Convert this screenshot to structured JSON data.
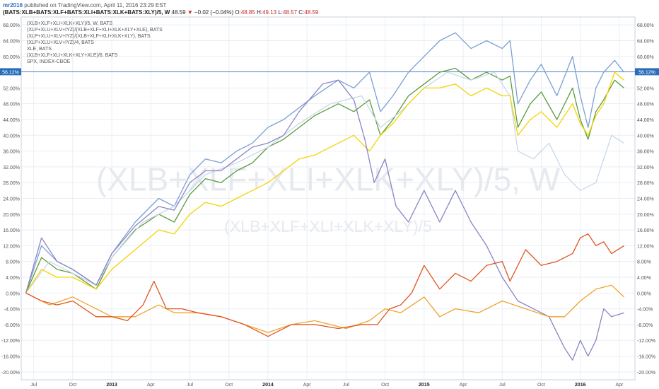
{
  "header": {
    "author": "mr2016",
    "published": "published on TradingView.com, April 11, 2016 23:29 EST",
    "symbol": "(BATS:XLB+BATS:XLF+BATS:XLI+BATS:XLK+BATS:XLY)/5, W",
    "last": "48.59",
    "change_arrow": "▼",
    "change": "−0.02 (−0.04%)",
    "o_label": "O:",
    "o": "48.85",
    "h_label": "H:",
    "h": "49.13",
    "l_label": "L:",
    "l": "48.57",
    "c_label": "C:",
    "c": "48.59"
  },
  "watermark": {
    "line1": "(XLB+XLF+XLI+XLK+XLY)/5, W",
    "line2": "(XLB+XLF+XLI+XLK+XLY)/5"
  },
  "current_marker": {
    "label": "56.12%",
    "value": 56.12
  },
  "colors": {
    "background": "#ffffff",
    "grid": "#e9eef4",
    "axis_text": "#555555",
    "marker": "#2a6ebb"
  },
  "chart_data": {
    "type": "line",
    "title": "",
    "xlabel": "",
    "ylabel": "",
    "y_unit": "%",
    "ylim": [
      -22,
      70
    ],
    "yticks": [
      -20,
      -16,
      -12,
      -8,
      -4,
      0,
      4,
      8,
      12,
      16,
      20,
      24,
      28,
      32,
      36,
      40,
      44,
      48,
      52,
      56,
      60,
      64,
      68
    ],
    "ytick_labels": [
      "-20.00%",
      "-16.00%",
      "-12.00%",
      "-8.00%",
      "-4.00%",
      "0.00%",
      "4.00%",
      "8.00%",
      "12.00%",
      "16.00%",
      "20.00%",
      "24.00%",
      "28.00%",
      "32.00%",
      "36.00%",
      "40.00%",
      "44.00%",
      "48.00%",
      "52.00%",
      "56.00%",
      "60.00%",
      "64.00%",
      "68.00%"
    ],
    "xlim": [
      2012.42,
      2016.35
    ],
    "xticks": [
      2012.5,
      2012.75,
      2013.0,
      2013.25,
      2013.5,
      2013.75,
      2014.0,
      2014.25,
      2014.5,
      2014.75,
      2015.0,
      2015.25,
      2015.5,
      2015.75,
      2016.0,
      2016.25
    ],
    "xtick_labels": [
      "Jul",
      "Oct",
      "2013",
      "Apr",
      "Jul",
      "Oct",
      "2014",
      "Apr",
      "Jul",
      "Oct",
      "2015",
      "Apr",
      "Jul",
      "Oct",
      "2016",
      "Apr"
    ],
    "grid": true,
    "legend_position": "top-left",
    "series": [
      {
        "name": "(XLB+XLF+XLI+XLK+XLY)/5, W, BATS",
        "color": "#7b9fd4",
        "x": [
          2012.45,
          2012.55,
          2012.65,
          2012.75,
          2012.9,
          2013.0,
          2013.15,
          2013.3,
          2013.4,
          2013.5,
          2013.6,
          2013.7,
          2013.8,
          2013.9,
          2014.0,
          2014.1,
          2014.2,
          2014.3,
          2014.45,
          2014.55,
          2014.65,
          2014.72,
          2014.8,
          2014.9,
          2015.0,
          2015.1,
          2015.2,
          2015.3,
          2015.4,
          2015.5,
          2015.55,
          2015.6,
          2015.68,
          2015.75,
          2015.85,
          2015.95,
          2016.0,
          2016.05,
          2016.1,
          2016.15,
          2016.22,
          2016.28
        ],
        "y": [
          0,
          12,
          8,
          6,
          2,
          10,
          18,
          24,
          22,
          30,
          34,
          33,
          36,
          38,
          42,
          44,
          47,
          50,
          54,
          52,
          56,
          46,
          50,
          56,
          60,
          64,
          66,
          62,
          64,
          62,
          64,
          48,
          54,
          58,
          50,
          60,
          50,
          42,
          52,
          56,
          59,
          56
        ]
      },
      {
        "name": "(XLP+XLU+XLV+IYZ)/(XLB+XLF+XLI+XLK+XLY+XLE), BATS",
        "color": "#5b9b3c",
        "x": [
          2012.45,
          2012.55,
          2012.65,
          2012.75,
          2012.9,
          2013.0,
          2013.15,
          2013.3,
          2013.4,
          2013.5,
          2013.6,
          2013.7,
          2013.8,
          2013.9,
          2014.0,
          2014.1,
          2014.2,
          2014.3,
          2014.45,
          2014.55,
          2014.65,
          2014.72,
          2014.8,
          2014.9,
          2015.0,
          2015.1,
          2015.2,
          2015.3,
          2015.4,
          2015.5,
          2015.55,
          2015.6,
          2015.68,
          2015.75,
          2015.85,
          2015.95,
          2016.0,
          2016.05,
          2016.1,
          2016.15,
          2016.22,
          2016.28
        ],
        "y": [
          0,
          9,
          6,
          5,
          1,
          9,
          16,
          20,
          18,
          25,
          29,
          28,
          31,
          33,
          37,
          39,
          42,
          45,
          48,
          46,
          49,
          40,
          44,
          50,
          53,
          56,
          57,
          54,
          56,
          54,
          55,
          42,
          48,
          51,
          44,
          52,
          44,
          39,
          46,
          49,
          54,
          52
        ]
      },
      {
        "name": "(XLP+XLU+XLV+IYZ)/(XLB+XLF+XLI+XLK+XLY), BATS",
        "color": "#c8d8ea",
        "x": [
          2012.45,
          2012.6,
          2012.75,
          2012.9,
          2013.0,
          2013.2,
          2013.4,
          2013.6,
          2013.8,
          2014.0,
          2014.2,
          2014.4,
          2014.6,
          2014.72,
          2014.85,
          2015.0,
          2015.15,
          2015.3,
          2015.45,
          2015.55,
          2015.6,
          2015.7,
          2015.8,
          2015.9,
          2016.0,
          2016.1,
          2016.2,
          2016.28
        ],
        "y": [
          0,
          8,
          5,
          2,
          9,
          18,
          22,
          30,
          33,
          37,
          43,
          48,
          50,
          42,
          46,
          52,
          56,
          54,
          56,
          50,
          36,
          34,
          38,
          30,
          26,
          28,
          40,
          38
        ]
      },
      {
        "name": "(XLP+XLU+XLV+IYZ)/4, BATS",
        "color": "#f4d400",
        "x": [
          2012.45,
          2012.55,
          2012.65,
          2012.75,
          2012.9,
          2013.0,
          2013.15,
          2013.3,
          2013.4,
          2013.5,
          2013.6,
          2013.7,
          2013.8,
          2013.9,
          2014.0,
          2014.1,
          2014.2,
          2014.3,
          2014.45,
          2014.55,
          2014.65,
          2014.72,
          2014.8,
          2014.9,
          2015.0,
          2015.1,
          2015.2,
          2015.3,
          2015.4,
          2015.5,
          2015.55,
          2015.6,
          2015.68,
          2015.75,
          2015.85,
          2015.95,
          2016.0,
          2016.05,
          2016.1,
          2016.15,
          2016.22,
          2016.28
        ],
        "y": [
          0,
          6,
          4,
          4,
          1,
          6,
          11,
          16,
          15,
          20,
          23,
          22,
          24,
          26,
          28,
          31,
          34,
          35,
          38,
          40,
          36,
          40,
          43,
          48,
          52,
          52,
          53,
          50,
          52,
          50,
          50,
          40,
          44,
          46,
          42,
          48,
          43,
          40,
          45,
          48,
          56,
          54
        ]
      },
      {
        "name": "XLE, BATS",
        "color": "#8b84c4",
        "x": [
          2012.45,
          2012.55,
          2012.65,
          2012.75,
          2012.9,
          2013.0,
          2013.15,
          2013.3,
          2013.4,
          2013.5,
          2013.6,
          2013.7,
          2013.8,
          2013.9,
          2014.0,
          2014.1,
          2014.2,
          2014.35,
          2014.45,
          2014.55,
          2014.62,
          2014.68,
          2014.75,
          2014.82,
          2014.9,
          2015.0,
          2015.1,
          2015.2,
          2015.3,
          2015.4,
          2015.5,
          2015.6,
          2015.7,
          2015.8,
          2015.9,
          2015.95,
          2016.0,
          2016.05,
          2016.1,
          2016.15,
          2016.2,
          2016.28
        ],
        "y": [
          0,
          14,
          8,
          6,
          2,
          10,
          17,
          22,
          21,
          28,
          31,
          31,
          34,
          37,
          38,
          40,
          46,
          53,
          54,
          49,
          39,
          28,
          34,
          22,
          18,
          26,
          18,
          26,
          18,
          12,
          4,
          -2,
          -4,
          -6,
          -14,
          -17,
          -12,
          -16,
          -12,
          -4,
          -6,
          -5
        ]
      },
      {
        "name": "(XLB+XLF+XLI+XLK+XLY+XLE)/6, BATS",
        "color": "#f0a32a",
        "x": [
          2012.45,
          2012.6,
          2012.75,
          2012.9,
          2013.0,
          2013.15,
          2013.3,
          2013.4,
          2013.55,
          2013.7,
          2013.85,
          2014.0,
          2014.15,
          2014.3,
          2014.5,
          2014.65,
          2014.75,
          2014.85,
          2015.0,
          2015.1,
          2015.2,
          2015.35,
          2015.5,
          2015.65,
          2015.8,
          2015.9,
          2016.0,
          2016.1,
          2016.2,
          2016.28
        ],
        "y": [
          0,
          -3,
          -1,
          -4,
          -6,
          -6,
          -3,
          -5,
          -5,
          -6,
          -8,
          -10,
          -8,
          -7,
          -9,
          -7,
          -4,
          -5,
          -1,
          -6,
          -4,
          -5,
          -2,
          -4,
          -6,
          -6,
          -2,
          1,
          2,
          -1
        ]
      },
      {
        "name": "SPX, INDEX-CBOE",
        "color": "#e0541f",
        "x": [
          2012.45,
          2012.55,
          2012.65,
          2012.75,
          2012.9,
          2013.0,
          2013.1,
          2013.2,
          2013.27,
          2013.35,
          2013.45,
          2013.55,
          2013.7,
          2013.85,
          2014.0,
          2014.15,
          2014.3,
          2014.45,
          2014.6,
          2014.7,
          2014.78,
          2014.85,
          2014.92,
          2015.0,
          2015.1,
          2015.2,
          2015.3,
          2015.4,
          2015.5,
          2015.55,
          2015.65,
          2015.75,
          2015.85,
          2015.95,
          2016.0,
          2016.05,
          2016.1,
          2016.15,
          2016.2,
          2016.28
        ],
        "y": [
          0,
          -2,
          -3,
          -2,
          -6,
          -6,
          -7,
          -3,
          3,
          -4,
          -4,
          -5,
          -6,
          -8,
          -11,
          -8,
          -8,
          -9,
          -8,
          -8,
          -4,
          -3,
          0,
          7,
          1,
          5,
          3,
          7,
          8,
          3,
          11,
          7,
          8,
          10,
          14,
          15,
          12,
          13,
          10,
          12
        ]
      }
    ]
  }
}
